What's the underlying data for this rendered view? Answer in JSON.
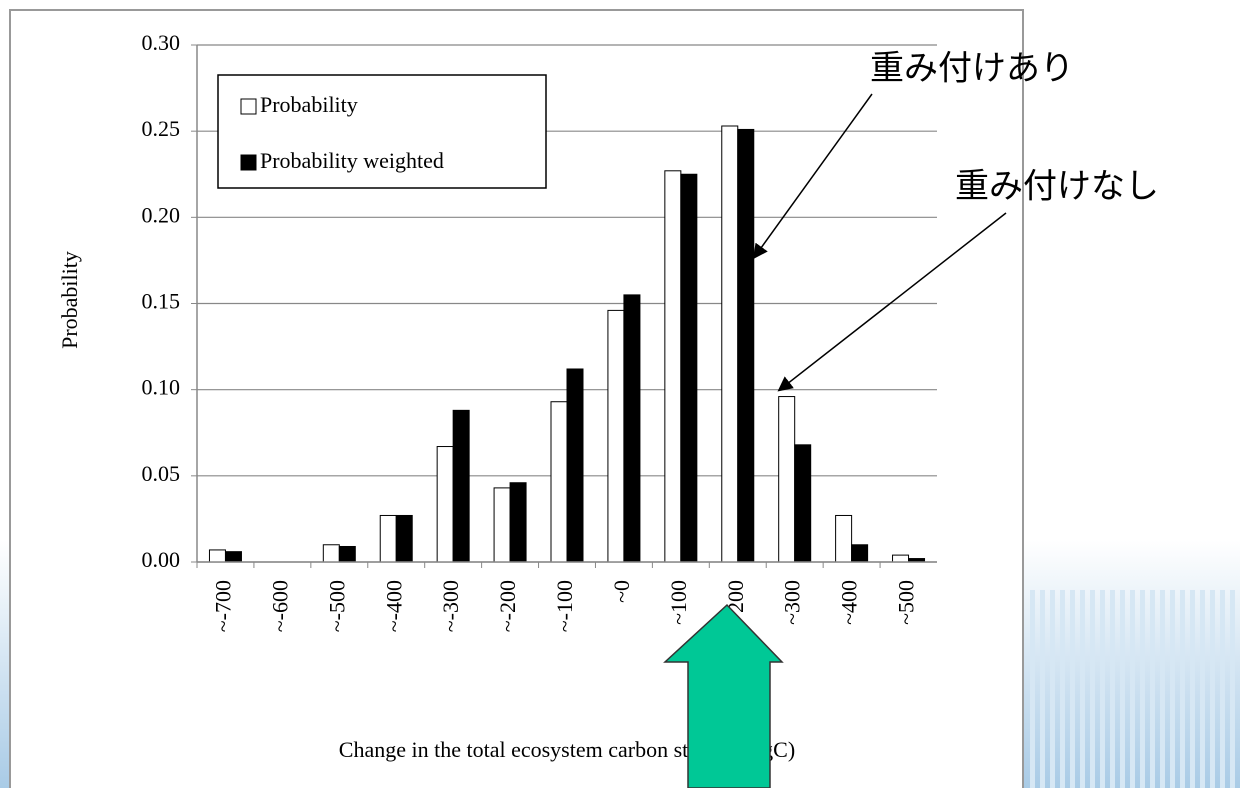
{
  "chart_data": {
    "type": "bar",
    "ylabel": "Probability",
    "xlabel": "Change in the total  ecosystem carbon storage (PgC)",
    "categories": [
      "~-700",
      "~-600",
      "~-500",
      "~-400",
      "~-300",
      "~-200",
      "~-100",
      "~0",
      "~100",
      "~200",
      "~300",
      "~400",
      "~500"
    ],
    "series": [
      {
        "name": "Probability",
        "color": "#ffffff",
        "values": [
          0.007,
          0,
          0.01,
          0.027,
          0.067,
          0.043,
          0.093,
          0.146,
          0.227,
          0.253,
          0.096,
          0.027,
          0.004
        ]
      },
      {
        "name": "Probability weighted",
        "color": "#000000",
        "values": [
          0.006,
          0,
          0.009,
          0.027,
          0.088,
          0.046,
          0.112,
          0.155,
          0.225,
          0.251,
          0.068,
          0.01,
          0.002
        ]
      }
    ],
    "ylim": [
      0,
      0.3
    ],
    "yticks": [
      {
        "value": 0,
        "label": "0.00"
      },
      {
        "value": 0.05,
        "label": "0.05"
      },
      {
        "value": 0.1,
        "label": "0.10"
      },
      {
        "value": 0.15,
        "label": "0.15"
      },
      {
        "value": 0.2,
        "label": "0.20"
      },
      {
        "value": 0.25,
        "label": "0.25"
      },
      {
        "value": 0.3,
        "label": "0.30"
      }
    ],
    "grid": true,
    "legend": "upper left",
    "annotations": [
      "重み付けあり",
      "重み付けなし"
    ]
  }
}
